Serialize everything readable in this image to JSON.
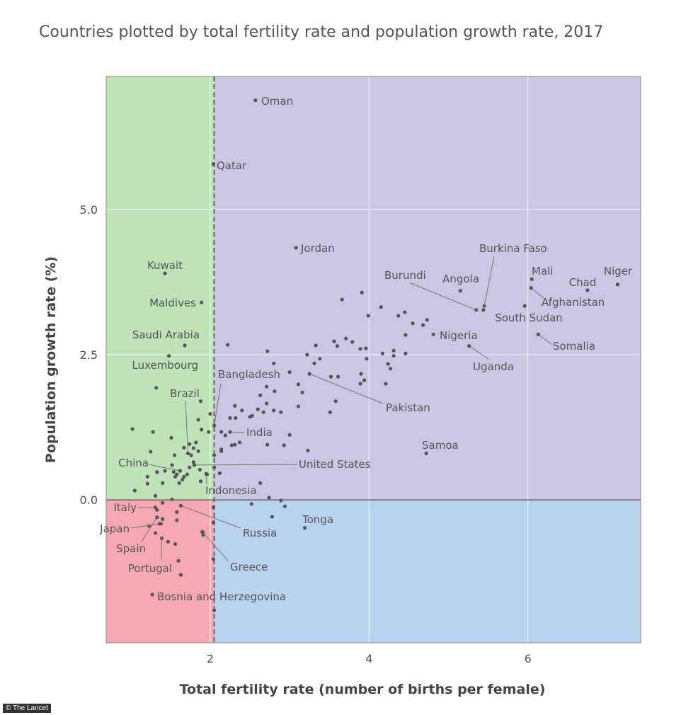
{
  "chart_data": {
    "type": "scatter",
    "title": "Countries plotted by total fertility rate and population growth rate, 2017",
    "xlabel": "Total fertility rate (number of births per female)",
    "ylabel": "Population growth rate (%)",
    "xlim": [
      0.69,
      7.42
    ],
    "ylim": [
      -2.46,
      7.29
    ],
    "xticks": [
      {
        "v": 2,
        "label": "2"
      },
      {
        "v": 4,
        "label": "4"
      },
      {
        "v": 6,
        "label": "6"
      }
    ],
    "yticks": [
      {
        "v": 0,
        "label": "0.0"
      },
      {
        "v": 2.5,
        "label": "2.5"
      },
      {
        "v": 5,
        "label": "5.0"
      }
    ],
    "grid": true,
    "replacement_threshold_x": 2.05,
    "quadrant_colors": {
      "low_fertility_growth": "#bfe2b9",
      "high_fertility_growth": "#cac6e4",
      "low_fertility_decline": "#f5a8b3",
      "high_fertility_decline": "#b9d3ef"
    },
    "point_color": "#555555",
    "labeled_points": [
      {
        "label": "Oman",
        "x": 2.57,
        "y": 6.88
      },
      {
        "label": "Qatar",
        "x": 2.04,
        "y": 5.78
      },
      {
        "label": "Jordan",
        "x": 3.08,
        "y": 4.34
      },
      {
        "label": "Kuwait",
        "x": 1.43,
        "y": 3.9
      },
      {
        "label": "Maldives",
        "x": 1.89,
        "y": 3.4
      },
      {
        "label": "Saudi Arabia",
        "x": 1.68,
        "y": 2.66
      },
      {
        "label": "Luxembourg",
        "x": 1.48,
        "y": 2.48
      },
      {
        "label": "Bangladesh",
        "x": 2.05,
        "y": 1.28
      },
      {
        "label": "Brazil",
        "x": 1.72,
        "y": 0.8
      },
      {
        "label": "India",
        "x": 2.25,
        "y": 1.17
      },
      {
        "label": "China",
        "x": 1.62,
        "y": 0.5
      },
      {
        "label": "United States",
        "x": 1.8,
        "y": 0.6
      },
      {
        "label": "Indonesia",
        "x": 1.95,
        "y": 0.45
      },
      {
        "label": "Italy",
        "x": 1.31,
        "y": -0.13
      },
      {
        "label": "Japan",
        "x": 1.36,
        "y": -0.41
      },
      {
        "label": "Spain",
        "x": 1.33,
        "y": -0.3
      },
      {
        "label": "Portugal",
        "x": 1.39,
        "y": -0.66
      },
      {
        "label": "Russia",
        "x": 1.63,
        "y": -0.1
      },
      {
        "label": "Greece",
        "x": 1.9,
        "y": -0.55
      },
      {
        "label": "Bosnia and Herzegovina",
        "x": 1.27,
        "y": -1.63
      },
      {
        "label": "Tonga",
        "x": 3.19,
        "y": -0.48
      },
      {
        "label": "Pakistan",
        "x": 3.25,
        "y": 2.17
      },
      {
        "label": "Samoa",
        "x": 4.72,
        "y": 0.8
      },
      {
        "label": "Burkina Faso",
        "x": 5.44,
        "y": 3.27
      },
      {
        "label": "Burundi",
        "x": 5.35,
        "y": 3.27
      },
      {
        "label": "Angola",
        "x": 5.15,
        "y": 3.6
      },
      {
        "label": "Mali",
        "x": 6.05,
        "y": 3.8
      },
      {
        "label": "Chad",
        "x": 6.75,
        "y": 3.61
      },
      {
        "label": "Niger",
        "x": 7.13,
        "y": 3.71
      },
      {
        "label": "Afghanistan",
        "x": 6.04,
        "y": 3.65
      },
      {
        "label": "South Sudan",
        "x": 5.96,
        "y": 3.34
      },
      {
        "label": "Somalia",
        "x": 6.13,
        "y": 2.85
      },
      {
        "label": "Nigeria",
        "x": 4.81,
        "y": 2.85
      },
      {
        "label": "Uganda",
        "x": 5.26,
        "y": 2.65
      }
    ],
    "other_points": [
      [
        3.66,
        3.45
      ],
      [
        3.91,
        3.57
      ],
      [
        4.15,
        3.32
      ],
      [
        3.99,
        3.17
      ],
      [
        4.37,
        3.17
      ],
      [
        4.45,
        3.23
      ],
      [
        4.55,
        3.04
      ],
      [
        4.68,
        3.01
      ],
      [
        4.73,
        3.1
      ],
      [
        4.46,
        2.84
      ],
      [
        2.22,
        2.67
      ],
      [
        2.72,
        2.56
      ],
      [
        3.33,
        2.66
      ],
      [
        3.56,
        2.73
      ],
      [
        3.6,
        2.65
      ],
      [
        3.71,
        2.78
      ],
      [
        3.79,
        2.72
      ],
      [
        3.89,
        2.6
      ],
      [
        3.96,
        2.61
      ],
      [
        4.17,
        2.52
      ],
      [
        4.31,
        2.57
      ],
      [
        4.31,
        2.48
      ],
      [
        4.46,
        2.52
      ],
      [
        3.22,
        2.5
      ],
      [
        3.38,
        2.43
      ],
      [
        3.31,
        2.35
      ],
      [
        2.8,
        2.35
      ],
      [
        3.97,
        2.43
      ],
      [
        4.24,
        2.34
      ],
      [
        4.27,
        2.26
      ],
      [
        3.0,
        2.2
      ],
      [
        3.52,
        2.12
      ],
      [
        3.61,
        2.12
      ],
      [
        3.9,
        2.17
      ],
      [
        3.89,
        2.0
      ],
      [
        3.94,
        2.06
      ],
      [
        4.21,
        2.0
      ],
      [
        2.71,
        1.95
      ],
      [
        2.81,
        1.87
      ],
      [
        3.11,
        1.99
      ],
      [
        3.16,
        1.85
      ],
      [
        2.63,
        1.8
      ],
      [
        2.71,
        1.66
      ],
      [
        2.6,
        1.56
      ],
      [
        2.67,
        1.51
      ],
      [
        2.8,
        1.54
      ],
      [
        2.89,
        1.51
      ],
      [
        3.11,
        1.61
      ],
      [
        3.58,
        1.7
      ],
      [
        3.51,
        1.51
      ],
      [
        2.5,
        1.43
      ],
      [
        2.31,
        1.62
      ],
      [
        2.4,
        1.54
      ],
      [
        2.25,
        1.41
      ],
      [
        2.32,
        1.41
      ],
      [
        3.0,
        1.12
      ],
      [
        2.72,
        0.95
      ],
      [
        2.93,
        0.94
      ],
      [
        3.23,
        0.85
      ],
      [
        2.14,
        0.84
      ],
      [
        2.27,
        0.94
      ],
      [
        2.37,
        0.99
      ],
      [
        5.45,
        3.34
      ],
      [
        1.32,
        1.93
      ],
      [
        1.02,
        1.22
      ],
      [
        1.28,
        1.17
      ],
      [
        1.51,
        1.07
      ],
      [
        1.25,
        0.83
      ],
      [
        1.05,
        0.16
      ],
      [
        1.21,
        0.4
      ],
      [
        1.21,
        0.28
      ],
      [
        1.4,
        0.29
      ],
      [
        1.33,
        0.48
      ],
      [
        1.43,
        0.5
      ],
      [
        1.54,
        0.48
      ],
      [
        1.58,
        0.44
      ],
      [
        1.67,
        0.4
      ],
      [
        1.55,
        0.77
      ],
      [
        1.52,
        0.6
      ],
      [
        1.67,
        0.9
      ],
      [
        1.74,
        0.96
      ],
      [
        1.79,
        0.89
      ],
      [
        1.82,
        0.99
      ],
      [
        1.85,
        0.84
      ],
      [
        1.76,
        0.77
      ],
      [
        1.79,
        0.65
      ],
      [
        1.74,
        0.56
      ],
      [
        1.87,
        0.52
      ],
      [
        1.71,
        0.44
      ],
      [
        1.61,
        0.29
      ],
      [
        1.65,
        0.35
      ],
      [
        1.88,
        0.32
      ],
      [
        1.96,
        0.44
      ],
      [
        1.85,
        1.38
      ],
      [
        1.89,
        1.21
      ],
      [
        1.98,
        1.17
      ],
      [
        2.0,
        1.48
      ],
      [
        1.88,
        1.7
      ],
      [
        2.05,
        0.77
      ],
      [
        2.05,
        0.56
      ],
      [
        2.12,
        0.46
      ],
      [
        2.14,
        1.17
      ],
      [
        2.19,
        1.11
      ],
      [
        2.14,
        0.87
      ],
      [
        2.31,
        0.95
      ],
      [
        2.53,
        1.45
      ],
      [
        2.63,
        0.29
      ],
      [
        2.74,
        0.04
      ],
      [
        2.89,
        -0.01
      ],
      [
        2.94,
        -0.11
      ],
      [
        2.52,
        -0.07
      ],
      [
        2.78,
        -0.29
      ],
      [
        2.04,
        -0.13
      ],
      [
        2.04,
        -0.39
      ],
      [
        2.04,
        -1.02
      ],
      [
        2.05,
        -1.9
      ],
      [
        1.91,
        -0.56
      ],
      [
        1.91,
        -0.6
      ],
      [
        1.58,
        -0.21
      ],
      [
        1.58,
        -0.35
      ],
      [
        1.4,
        -0.05
      ],
      [
        1.52,
        0.01
      ],
      [
        1.31,
        0.07
      ],
      [
        1.33,
        -0.17
      ],
      [
        1.4,
        -0.33
      ],
      [
        1.38,
        -0.41
      ],
      [
        1.31,
        -0.57
      ],
      [
        1.23,
        -0.45
      ],
      [
        1.47,
        -0.72
      ],
      [
        1.56,
        -0.76
      ],
      [
        1.6,
        -1.05
      ],
      [
        1.63,
        -1.29
      ],
      [
        1.56,
        0.4
      ]
    ]
  },
  "credit": "© The Lancet"
}
